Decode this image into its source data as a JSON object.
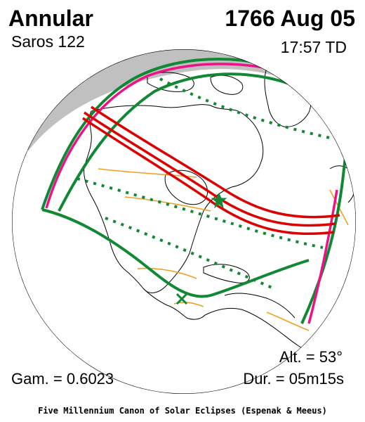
{
  "header": {
    "eclipse_type": "Annular",
    "saros": "Saros 122",
    "date": "1766 Aug 05",
    "time": "17:57 TD"
  },
  "footer": {
    "altitude": "Alt. = 53°",
    "gamma": "Gam. = 0.6023",
    "duration": "Dur. = 05m15s",
    "credit": "Five Millennium Canon of Solar Eclipses (Espenak & Meeus)"
  },
  "colors": {
    "path_of_annularity": "#dd0000",
    "eclipse_limits": "#ee1188",
    "penumbral_limits": "#118833",
    "dotted_contours": "#118833",
    "coastlines": "#000000",
    "borders": "#f0a020",
    "night_side": "#c0c0c0"
  },
  "markers": {
    "greatest_eclipse": "star",
    "subsolar_point": "x"
  }
}
